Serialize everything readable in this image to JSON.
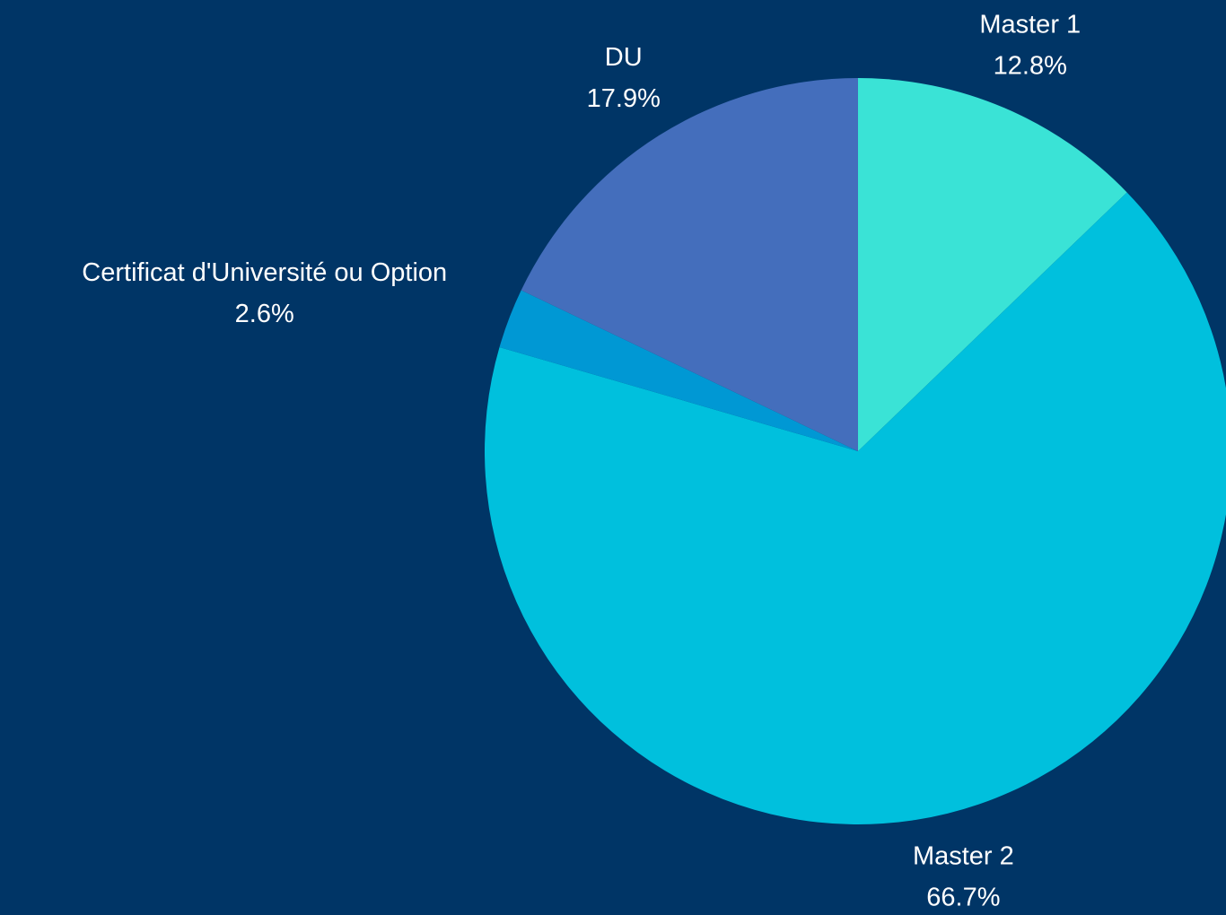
{
  "chart_data": {
    "type": "pie",
    "categories": [
      "Master 1",
      "Master 2",
      "Certificat d'Université ou Option",
      "DU"
    ],
    "values": [
      12.8,
      66.7,
      2.6,
      17.9
    ],
    "value_labels": [
      "12.8%",
      "66.7%",
      "2.6%",
      "17.9%"
    ],
    "colors": [
      "#3ae3d6",
      "#00c0dd",
      "#0098d4",
      "#446ebc"
    ],
    "background": "#003566"
  }
}
